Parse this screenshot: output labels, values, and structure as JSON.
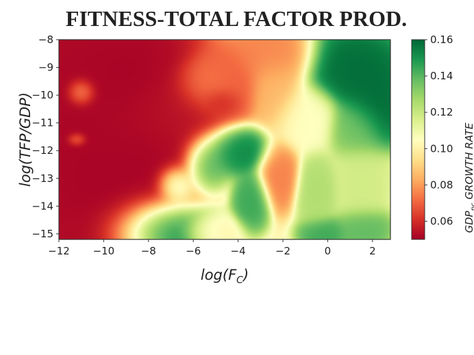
{
  "chart_data": {
    "type": "heatmap",
    "title": "FITNESS-TOTAL FACTOR PROD.",
    "xlabel": "log(F_C)",
    "xlabel_main": "log(F",
    "xlabel_sub": "C",
    "xlabel_close": ")",
    "ylabel": "log(TFP/GDP)",
    "xlim": [
      -12,
      2.8
    ],
    "ylim": [
      -15.2,
      -8
    ],
    "x_ticks": [
      -12,
      -10,
      -8,
      -6,
      -4,
      -2,
      0,
      2
    ],
    "x_tick_labels": [
      "−12",
      "−10",
      "−8",
      "−6",
      "−4",
      "−2",
      "0",
      "2"
    ],
    "y_ticks": [
      -8,
      -9,
      -10,
      -11,
      -12,
      -13,
      -14,
      -15
    ],
    "y_tick_labels": [
      "−8",
      "−9",
      "−10",
      "−11",
      "−12",
      "−13",
      "−14",
      "−15"
    ],
    "colorbar": {
      "label": "GDP_pc GROWTH RATE",
      "label_main": "GDP",
      "label_sub": "pc",
      "label_rest": " GROWTH RATE",
      "range": [
        0.05,
        0.16
      ],
      "ticks": [
        0.06,
        0.08,
        0.1,
        0.12,
        0.14,
        0.16
      ],
      "tick_labels": [
        "0.06",
        "0.08",
        "0.10",
        "0.12",
        "0.14",
        "0.16"
      ],
      "colormap": "RdYlGn"
    },
    "base_value": 0.102,
    "features": [
      {
        "x": -11.5,
        "y": -11.0,
        "value": 0.05,
        "sx": 2.6,
        "sy": 5.0
      },
      {
        "x": -9.5,
        "y": -13.6,
        "value": 0.05,
        "sx": 1.8,
        "sy": 1.8
      },
      {
        "x": -8.5,
        "y": -9.0,
        "value": 0.05,
        "sx": 2.0,
        "sy": 1.5
      },
      {
        "x": -7.5,
        "y": -12.2,
        "value": 0.05,
        "sx": 1.6,
        "sy": 1.6
      },
      {
        "x": -6.5,
        "y": -10.8,
        "value": 0.055,
        "sx": 1.5,
        "sy": 1.2
      },
      {
        "x": -11.0,
        "y": -9.9,
        "value": 0.09,
        "sx": 0.45,
        "sy": 0.35
      },
      {
        "x": -11.2,
        "y": -11.6,
        "value": 0.08,
        "sx": 0.3,
        "sy": 0.18
      },
      {
        "x": -5.4,
        "y": -9.6,
        "value": 0.078,
        "sx": 1.0,
        "sy": 0.7
      },
      {
        "x": -4.6,
        "y": -9.6,
        "value": 0.068,
        "sx": 1.1,
        "sy": 0.9
      },
      {
        "x": -4.8,
        "y": -10.2,
        "value": 0.055,
        "sx": 0.6,
        "sy": 0.35
      },
      {
        "x": -2.3,
        "y": -9.7,
        "value": 0.085,
        "sx": 0.8,
        "sy": 1.0
      },
      {
        "x": -2.5,
        "y": -8.6,
        "value": 0.075,
        "sx": 1.3,
        "sy": 0.7
      },
      {
        "x": -1.0,
        "y": -10.8,
        "value": 0.105,
        "sx": 0.9,
        "sy": 0.8
      },
      {
        "x": 1.2,
        "y": -9.0,
        "value": 0.16,
        "sx": 1.5,
        "sy": 0.9
      },
      {
        "x": 2.2,
        "y": -10.3,
        "value": 0.16,
        "sx": 1.0,
        "sy": 1.0
      },
      {
        "x": 1.3,
        "y": -11.2,
        "value": 0.135,
        "sx": 0.8,
        "sy": 0.7
      },
      {
        "x": -4.3,
        "y": -12.0,
        "value": 0.155,
        "sx": 1.1,
        "sy": 0.6
      },
      {
        "x": -5.5,
        "y": -12.5,
        "value": 0.15,
        "sx": 0.7,
        "sy": 0.7
      },
      {
        "x": -6.8,
        "y": -13.2,
        "value": 0.135,
        "sx": 0.6,
        "sy": 0.5
      },
      {
        "x": -3.4,
        "y": -13.8,
        "value": 0.145,
        "sx": 0.55,
        "sy": 0.7
      },
      {
        "x": -7.5,
        "y": -14.8,
        "value": 0.16,
        "sx": 1.6,
        "sy": 0.8
      },
      {
        "x": -5.2,
        "y": -14.9,
        "value": 0.1,
        "sx": 0.9,
        "sy": 0.45
      },
      {
        "x": -2.2,
        "y": -12.9,
        "value": 0.075,
        "sx": 0.6,
        "sy": 0.8
      },
      {
        "x": -0.5,
        "y": -13.5,
        "value": 0.125,
        "sx": 0.6,
        "sy": 0.9
      },
      {
        "x": 1.5,
        "y": -13.2,
        "value": 0.118,
        "sx": 0.8,
        "sy": 1.0
      },
      {
        "x": -0.2,
        "y": -15.0,
        "value": 0.145,
        "sx": 0.7,
        "sy": 0.4
      },
      {
        "x": 1.6,
        "y": -14.8,
        "value": 0.14,
        "sx": 0.8,
        "sy": 0.5
      }
    ]
  }
}
